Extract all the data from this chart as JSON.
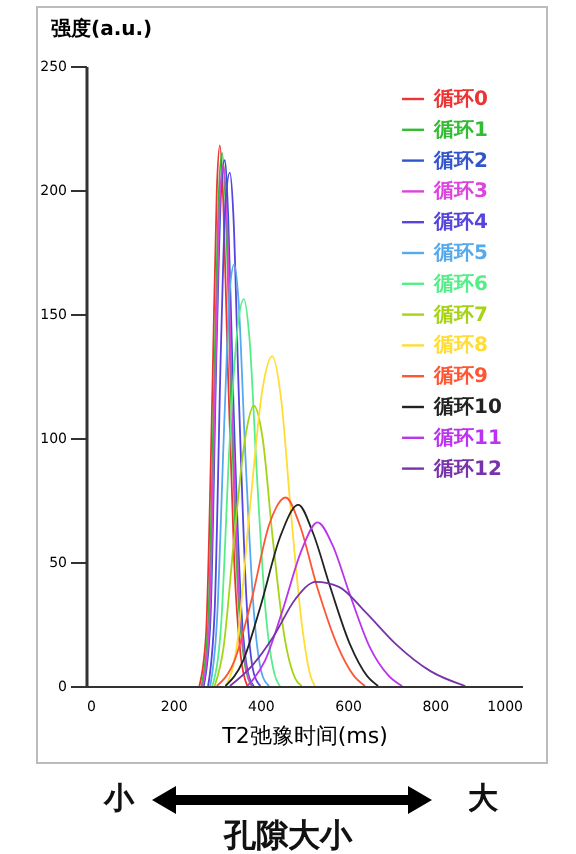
{
  "chart_data": {
    "type": "line",
    "xlabel": "T2弛豫时间(ms)",
    "ylabel": "强度(a.u.)",
    "xlim": [
      0,
      1000
    ],
    "xticks": [
      0,
      200,
      400,
      600,
      800,
      1000
    ],
    "ylim": [
      0,
      250
    ],
    "yticks": [
      0,
      50,
      100,
      150,
      200,
      250
    ],
    "legend": "top right",
    "annotations": [
      "小",
      "大",
      "孔隙大小"
    ],
    "series": [
      {
        "name": "循环0",
        "color": "#ee3333",
        "x": [
          260,
          275,
          290,
          300,
          307,
          315,
          325,
          340,
          355,
          370
        ],
        "values": [
          0,
          20,
          120,
          200,
          218,
          195,
          130,
          50,
          12,
          0
        ]
      },
      {
        "name": "循环1",
        "color": "#33bb33",
        "x": [
          265,
          280,
          295,
          305,
          312,
          320,
          332,
          348,
          365,
          380
        ],
        "values": [
          0,
          25,
          130,
          200,
          215,
          195,
          120,
          40,
          8,
          0
        ]
      },
      {
        "name": "循环2",
        "color": "#3355cc",
        "x": [
          270,
          285,
          300,
          310,
          318,
          326,
          338,
          355,
          372,
          385
        ],
        "values": [
          0,
          25,
          140,
          200,
          212,
          190,
          115,
          35,
          5,
          0
        ]
      },
      {
        "name": "循环3",
        "color": "#dd44dd",
        "x": [
          268,
          283,
          298,
          308,
          315,
          323,
          335,
          352,
          370,
          382
        ],
        "values": [
          0,
          25,
          135,
          200,
          210,
          190,
          115,
          35,
          5,
          0
        ]
      },
      {
        "name": "循环4",
        "color": "#5544dd",
        "x": [
          280,
          295,
          310,
          320,
          330,
          338,
          350,
          368,
          385,
          400
        ],
        "values": [
          0,
          30,
          140,
          195,
          207,
          190,
          120,
          35,
          5,
          0
        ]
      },
      {
        "name": "循环5",
        "color": "#55aaee",
        "x": [
          285,
          300,
          318,
          330,
          340,
          350,
          365,
          385,
          405,
          420
        ],
        "values": [
          0,
          25,
          110,
          160,
          170,
          155,
          95,
          30,
          4,
          0
        ]
      },
      {
        "name": "循环6",
        "color": "#55ee88",
        "x": [
          290,
          310,
          330,
          348,
          362,
          375,
          392,
          412,
          432,
          445
        ],
        "values": [
          0,
          25,
          100,
          145,
          156,
          140,
          85,
          30,
          5,
          0
        ]
      },
      {
        "name": "循环7",
        "color": "#a6d414",
        "x": [
          295,
          315,
          340,
          365,
          385,
          405,
          428,
          455,
          480,
          495
        ],
        "values": [
          0,
          15,
          60,
          100,
          113,
          100,
          60,
          20,
          3,
          0
        ]
      },
      {
        "name": "循环8",
        "color": "#ffdd33",
        "x": [
          320,
          345,
          375,
          405,
          427,
          448,
          470,
          495,
          515,
          525
        ],
        "values": [
          0,
          15,
          70,
          120,
          133,
          115,
          70,
          25,
          4,
          0
        ]
      },
      {
        "name": "循环9",
        "color": "#ff5533",
        "x": [
          300,
          340,
          380,
          420,
          458,
          490,
          530,
          575,
          615,
          640
        ],
        "values": [
          0,
          10,
          35,
          65,
          76,
          65,
          40,
          17,
          4,
          0
        ]
      },
      {
        "name": "循环10",
        "color": "#222222",
        "x": [
          320,
          360,
          400,
          445,
          487,
          520,
          560,
          605,
          645,
          670
        ],
        "values": [
          0,
          10,
          32,
          60,
          73,
          62,
          40,
          17,
          4,
          0
        ]
      },
      {
        "name": "循环11",
        "color": "#bb33ee",
        "x": [
          370,
          410,
          450,
          495,
          531,
          565,
          605,
          650,
          695,
          725
        ],
        "values": [
          0,
          10,
          30,
          55,
          66,
          57,
          37,
          16,
          4,
          0
        ]
      },
      {
        "name": "循环12",
        "color": "#7733aa",
        "x": [
          330,
          380,
          430,
          480,
          527,
          580,
          640,
          710,
          790,
          870
        ],
        "values": [
          0,
          8,
          20,
          35,
          42,
          40,
          30,
          17,
          6,
          0
        ]
      }
    ]
  }
}
